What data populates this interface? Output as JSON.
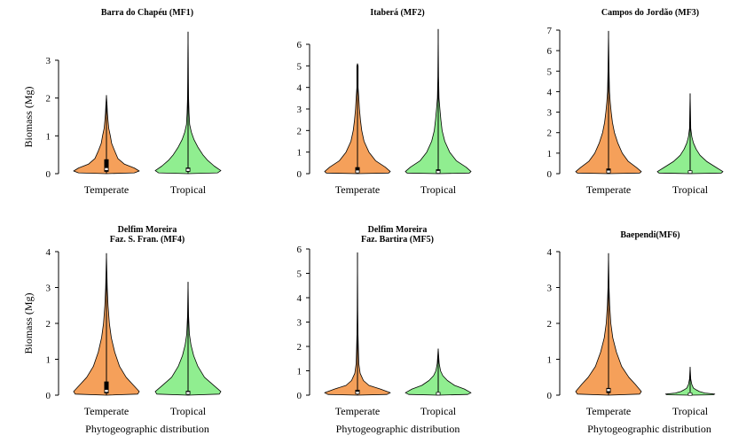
{
  "figure": {
    "ylabel": "Biomass (Mg)",
    "xlabel": "Phytogeographic distribution",
    "colors": {
      "Temperate": "#f5a05a",
      "Tropical": "#90ee90",
      "outline": "#000000"
    }
  },
  "chart_data": [
    {
      "type": "violin",
      "title": [
        "Barra do Chapéu (MF1)"
      ],
      "categories": [
        "Temperate",
        "Tropical"
      ],
      "ylim": [
        0,
        3
      ],
      "yticks": [
        0,
        1,
        2,
        3
      ],
      "show_ylabel": true,
      "show_xlabel": false,
      "series": [
        {
          "name": "Temperate",
          "max": 2.07,
          "median": 0.12,
          "q1": 0.05,
          "q3": 0.38,
          "density": [
            [
              0,
              0
            ],
            [
              0.02,
              0.85
            ],
            [
              0.07,
              1
            ],
            [
              0.15,
              0.85
            ],
            [
              0.25,
              0.55
            ],
            [
              0.4,
              0.35
            ],
            [
              0.6,
              0.25
            ],
            [
              0.8,
              0.16
            ],
            [
              1.0,
              0.12
            ],
            [
              1.2,
              0.07
            ],
            [
              1.4,
              0.05
            ],
            [
              1.6,
              0.03
            ],
            [
              1.8,
              0.02
            ],
            [
              2.07,
              0
            ]
          ]
        },
        {
          "name": "Tropical",
          "max": 3.75,
          "median": 0.1,
          "q1": 0.05,
          "q3": 0.16,
          "density": [
            [
              0,
              0
            ],
            [
              0.02,
              0.9
            ],
            [
              0.08,
              1
            ],
            [
              0.2,
              0.8
            ],
            [
              0.35,
              0.6
            ],
            [
              0.5,
              0.45
            ],
            [
              0.7,
              0.3
            ],
            [
              0.9,
              0.18
            ],
            [
              1.1,
              0.1
            ],
            [
              1.3,
              0.05
            ],
            [
              1.6,
              0.03
            ],
            [
              2.0,
              0.015
            ],
            [
              2.5,
              0.01
            ],
            [
              3.2,
              0.006
            ],
            [
              3.75,
              0
            ]
          ]
        }
      ]
    },
    {
      "type": "violin",
      "title": [
        "Itaberá (MF2)"
      ],
      "categories": [
        "Temperate",
        "Tropical"
      ],
      "ylim": [
        0,
        6.5
      ],
      "yticks": [
        0,
        1,
        2,
        3,
        4,
        5,
        6
      ],
      "show_ylabel": false,
      "show_xlabel": false,
      "series": [
        {
          "name": "Temperate",
          "max": 5.1,
          "median": 0.1,
          "q1": 0.05,
          "q3": 0.3,
          "density": [
            [
              0,
              0
            ],
            [
              0.03,
              0.95
            ],
            [
              0.1,
              1
            ],
            [
              0.3,
              0.85
            ],
            [
              0.6,
              0.55
            ],
            [
              1.0,
              0.35
            ],
            [
              1.5,
              0.2
            ],
            [
              2.0,
              0.13
            ],
            [
              2.5,
              0.09
            ],
            [
              3.0,
              0.06
            ],
            [
              3.5,
              0.04
            ],
            [
              4.0,
              0.02
            ],
            [
              4.6,
              0.02
            ],
            [
              5.0,
              0.02
            ],
            [
              5.1,
              0
            ]
          ]
        },
        {
          "name": "Tropical",
          "max": 6.7,
          "median": 0.08,
          "q1": 0.04,
          "q3": 0.2,
          "density": [
            [
              0,
              0
            ],
            [
              0.03,
              0.95
            ],
            [
              0.1,
              1
            ],
            [
              0.3,
              0.85
            ],
            [
              0.6,
              0.55
            ],
            [
              1.0,
              0.35
            ],
            [
              1.5,
              0.2
            ],
            [
              2.0,
              0.12
            ],
            [
              2.5,
              0.08
            ],
            [
              3.0,
              0.05
            ],
            [
              3.5,
              0.025
            ],
            [
              4.5,
              0.01
            ],
            [
              5.5,
              0.006
            ],
            [
              6.7,
              0
            ]
          ]
        }
      ]
    },
    {
      "type": "violin",
      "title": [
        "Campos do Jordão (MF3)"
      ],
      "categories": [
        "Temperate",
        "Tropical"
      ],
      "ylim": [
        0,
        7
      ],
      "yticks": [
        0,
        1,
        2,
        3,
        4,
        5,
        6,
        7
      ],
      "show_ylabel": false,
      "show_xlabel": false,
      "series": [
        {
          "name": "Temperate",
          "max": 6.95,
          "median": 0.1,
          "q1": 0.05,
          "q3": 0.25,
          "density": [
            [
              0,
              0
            ],
            [
              0.03,
              0.95
            ],
            [
              0.1,
              1
            ],
            [
              0.3,
              0.85
            ],
            [
              0.6,
              0.6
            ],
            [
              1.0,
              0.42
            ],
            [
              1.5,
              0.28
            ],
            [
              2.0,
              0.18
            ],
            [
              2.5,
              0.12
            ],
            [
              3.0,
              0.08
            ],
            [
              3.5,
              0.05
            ],
            [
              4.0,
              0.03
            ],
            [
              5.0,
              0.015
            ],
            [
              6.0,
              0.008
            ],
            [
              6.95,
              0
            ]
          ]
        },
        {
          "name": "Tropical",
          "max": 3.9,
          "median": 0.08,
          "q1": 0.04,
          "q3": 0.15,
          "density": [
            [
              0,
              0
            ],
            [
              0.03,
              0.95
            ],
            [
              0.1,
              1
            ],
            [
              0.3,
              0.8
            ],
            [
              0.6,
              0.5
            ],
            [
              0.9,
              0.3
            ],
            [
              1.2,
              0.18
            ],
            [
              1.5,
              0.1
            ],
            [
              1.8,
              0.05
            ],
            [
              2.2,
              0.02
            ],
            [
              3.0,
              0.01
            ],
            [
              3.9,
              0
            ]
          ]
        }
      ]
    },
    {
      "type": "violin",
      "title": [
        "Delfim Moreira",
        "Faz. S. Fran. (MF4)"
      ],
      "categories": [
        "Temperate",
        "Tropical"
      ],
      "ylim": [
        0,
        4
      ],
      "yticks": [
        0,
        1,
        2,
        3,
        4
      ],
      "show_ylabel": true,
      "show_xlabel": true,
      "series": [
        {
          "name": "Temperate",
          "max": 3.95,
          "median": 0.12,
          "q1": 0.05,
          "q3": 0.38,
          "density": [
            [
              0,
              0
            ],
            [
              0.03,
              0.95
            ],
            [
              0.1,
              1
            ],
            [
              0.3,
              0.8
            ],
            [
              0.5,
              0.6
            ],
            [
              0.8,
              0.4
            ],
            [
              1.2,
              0.25
            ],
            [
              1.6,
              0.15
            ],
            [
              2.0,
              0.09
            ],
            [
              2.5,
              0.05
            ],
            [
              3.0,
              0.025
            ],
            [
              3.5,
              0.012
            ],
            [
              3.95,
              0
            ]
          ]
        },
        {
          "name": "Tropical",
          "max": 3.15,
          "median": 0.06,
          "q1": 0.03,
          "q3": 0.12,
          "density": [
            [
              0,
              0
            ],
            [
              0.03,
              0.95
            ],
            [
              0.1,
              1
            ],
            [
              0.3,
              0.75
            ],
            [
              0.5,
              0.5
            ],
            [
              0.8,
              0.3
            ],
            [
              1.1,
              0.17
            ],
            [
              1.4,
              0.09
            ],
            [
              1.7,
              0.04
            ],
            [
              2.2,
              0.015
            ],
            [
              3.15,
              0
            ]
          ]
        }
      ]
    },
    {
      "type": "violin",
      "title": [
        "Delfim Moreira",
        "Faz. Bartira (MF5)"
      ],
      "categories": [
        "Temperate",
        "Tropical"
      ],
      "ylim": [
        0,
        6
      ],
      "yticks": [
        0,
        1,
        2,
        3,
        4,
        5,
        6
      ],
      "show_ylabel": false,
      "show_xlabel": true,
      "series": [
        {
          "name": "Temperate",
          "max": 5.85,
          "median": 0.1,
          "q1": 0.05,
          "q3": 0.22,
          "density": [
            [
              0,
              0
            ],
            [
              0.03,
              0.9
            ],
            [
              0.1,
              1
            ],
            [
              0.25,
              0.7
            ],
            [
              0.4,
              0.35
            ],
            [
              0.6,
              0.18
            ],
            [
              0.9,
              0.08
            ],
            [
              1.3,
              0.04
            ],
            [
              1.8,
              0.03
            ],
            [
              2.5,
              0.015
            ],
            [
              3.5,
              0.008
            ],
            [
              5.85,
              0
            ]
          ]
        },
        {
          "name": "Tropical",
          "max": 1.9,
          "median": 0.06,
          "q1": 0.03,
          "q3": 0.12,
          "density": [
            [
              0,
              0
            ],
            [
              0.03,
              0.9
            ],
            [
              0.1,
              1
            ],
            [
              0.25,
              0.8
            ],
            [
              0.4,
              0.5
            ],
            [
              0.6,
              0.28
            ],
            [
              0.8,
              0.14
            ],
            [
              1.0,
              0.07
            ],
            [
              1.3,
              0.03
            ],
            [
              1.9,
              0
            ]
          ]
        }
      ]
    },
    {
      "type": "violin",
      "title": [
        "Baependi(MF6)"
      ],
      "categories": [
        "Temperate",
        "Tropical"
      ],
      "ylim": [
        0,
        4
      ],
      "yticks": [
        0,
        1,
        2,
        3,
        4
      ],
      "show_ylabel": false,
      "show_xlabel": true,
      "series": [
        {
          "name": "Temperate",
          "max": 3.95,
          "median": 0.14,
          "q1": 0.06,
          "q3": 0.2,
          "density": [
            [
              0,
              0
            ],
            [
              0.03,
              0.95
            ],
            [
              0.1,
              1
            ],
            [
              0.3,
              0.82
            ],
            [
              0.5,
              0.62
            ],
            [
              0.8,
              0.4
            ],
            [
              1.2,
              0.24
            ],
            [
              1.6,
              0.13
            ],
            [
              2.0,
              0.07
            ],
            [
              2.5,
              0.035
            ],
            [
              3.0,
              0.015
            ],
            [
              3.95,
              0
            ]
          ]
        },
        {
          "name": "Tropical",
          "max": 0.78,
          "median": 0.03,
          "q1": 0.01,
          "q3": 0.05,
          "density": [
            [
              0,
              0
            ],
            [
              0.01,
              0.7
            ],
            [
              0.03,
              0.75
            ],
            [
              0.06,
              0.45
            ],
            [
              0.1,
              0.28
            ],
            [
              0.15,
              0.18
            ],
            [
              0.2,
              0.1
            ],
            [
              0.3,
              0.05
            ],
            [
              0.45,
              0.02
            ],
            [
              0.78,
              0
            ]
          ]
        }
      ]
    }
  ]
}
